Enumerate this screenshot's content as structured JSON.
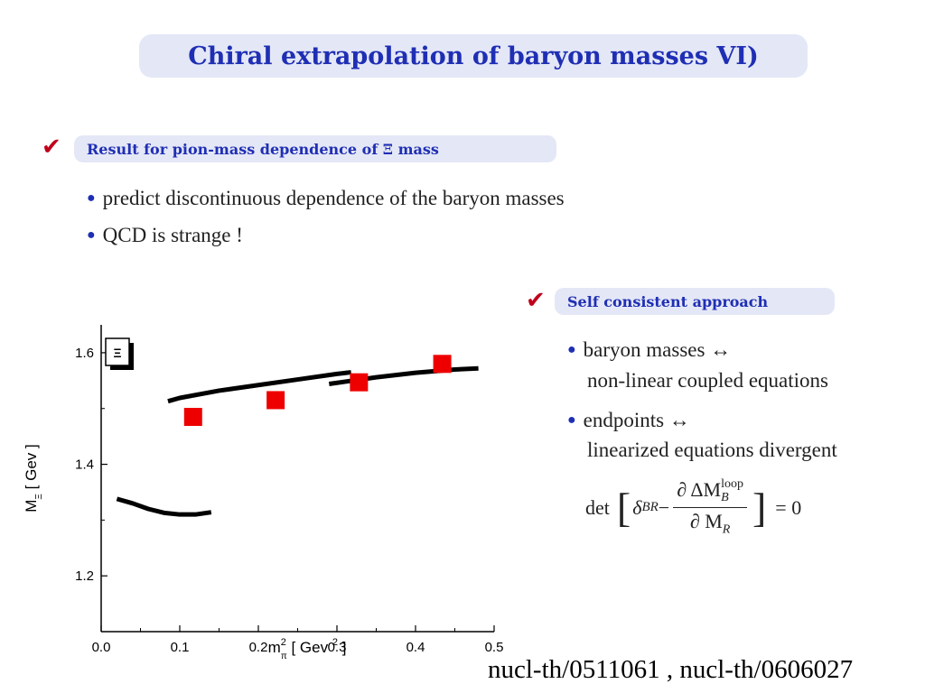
{
  "title": "Chiral extrapolation of baryon masses VI)",
  "section1": {
    "check": "✔",
    "heading": "Result for pion-mass dependence of Ξ mass",
    "bullets": [
      "predict discontinuous dependence of the baryon masses",
      "QCD is strange !"
    ]
  },
  "section2": {
    "check": "✔",
    "heading": "Self consistent approach",
    "bullets": [
      {
        "line1": "baryon masses ↔",
        "line2": "non-linear coupled equations"
      },
      {
        "line1": "endpoints ↔",
        "line2": "linearized equations divergent"
      }
    ],
    "formula": {
      "det": "det",
      "delta": "δ",
      "delta_sub": "BR",
      "minus": "−",
      "num_pre": "∂ ΔM",
      "num_sub": "B",
      "num_sup": "loop",
      "den_pre": "∂ M",
      "den_sub": "R",
      "rhs": "= 0"
    }
  },
  "reference": "nucl-th/0511061 , nucl-th/0606027",
  "bullet_glyph": "●",
  "colors": {
    "accent_blue": "#1f2fb4",
    "box_bg": "#e4e7f6",
    "check_red": "#c0001c",
    "square_red": "#ee0000"
  },
  "chart_data": {
    "type": "scatter",
    "panel_label": "Ξ",
    "xlabel": "m",
    "xlabel_sub": "π",
    "xlabel_sup": "2",
    "xlabel_unit_pre": "[ Gev",
    "xlabel_unit_sup": "2",
    "xlabel_unit_post": "]",
    "ylabel": "M",
    "ylabel_sub": "Ξ",
    "ylabel_unit": "[ Gev ]",
    "xlim": [
      0.0,
      0.5
    ],
    "ylim": [
      1.1,
      1.65
    ],
    "x_ticks": [
      0.0,
      0.1,
      0.2,
      0.3,
      0.4,
      0.5
    ],
    "x_tick_labels": [
      "0.0",
      "0.1",
      "0.2",
      "0.3",
      "0.4",
      "0.5"
    ],
    "y_ticks": [
      1.2,
      1.4,
      1.6
    ],
    "y_tick_labels": [
      "1.2",
      "1.4",
      "1.6"
    ],
    "grid": false,
    "points": [
      {
        "x": 0.117,
        "y": 1.485
      },
      {
        "x": 0.222,
        "y": 1.515
      },
      {
        "x": 0.328,
        "y": 1.547
      },
      {
        "x": 0.434,
        "y": 1.58
      }
    ],
    "curves": [
      {
        "x": [
          0.02,
          0.04,
          0.06,
          0.08,
          0.1,
          0.12,
          0.14
        ],
        "y": [
          1.338,
          1.33,
          1.32,
          1.313,
          1.31,
          1.31,
          1.314
        ]
      },
      {
        "x": [
          0.085,
          0.1,
          0.15,
          0.2,
          0.25,
          0.3,
          0.318
        ],
        "y": [
          1.513,
          1.519,
          1.532,
          1.542,
          1.552,
          1.562,
          1.565
        ]
      },
      {
        "x": [
          0.29,
          0.32,
          0.35,
          0.4,
          0.45,
          0.48
        ],
        "y": [
          1.544,
          1.55,
          1.556,
          1.564,
          1.57,
          1.572
        ]
      }
    ]
  }
}
